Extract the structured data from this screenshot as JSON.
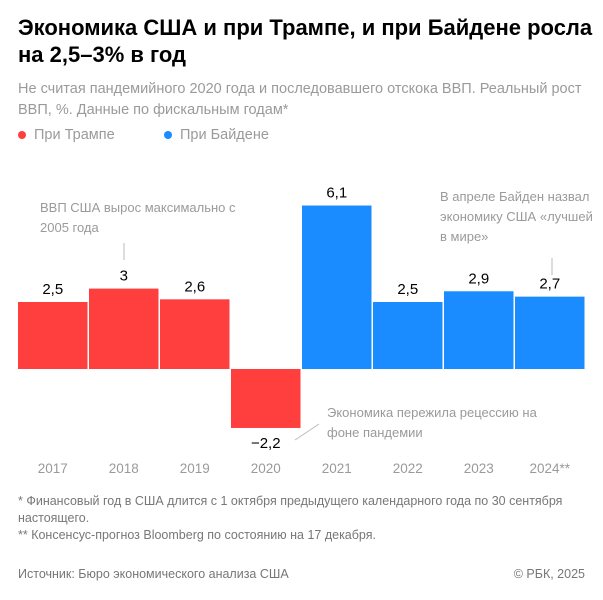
{
  "title": "Экономика США и при Трампе, и при Байдене росла на 2,5–3% в год",
  "subtitle": "Не считая пандемийного 2020 года и последовавшего отскока ВВП. Реальный рост ВВП, %. Данные по фискальным годам*",
  "legend": [
    {
      "label": "При Трампе",
      "color": "#ff3e3e"
    },
    {
      "label": "При Байдене",
      "color": "#1a8cff"
    }
  ],
  "chart_data": {
    "type": "bar",
    "categories": [
      "2017",
      "2018",
      "2019",
      "2020",
      "2021",
      "2022",
      "2023",
      "2024**"
    ],
    "values": [
      2.5,
      3,
      2.6,
      -2.2,
      6.1,
      2.5,
      2.9,
      2.7
    ],
    "value_labels": [
      "2,5",
      "3",
      "2,6",
      "−2,2",
      "6,1",
      "2,5",
      "2,9",
      "2,7"
    ],
    "series_by_category": [
      "При Трампе",
      "При Трампе",
      "При Трампе",
      "При Трампе",
      "При Байдене",
      "При Байдене",
      "При Байдене",
      "При Байдене"
    ],
    "grid": false,
    "annotations": [
      "ВВП США вырос максимально с 2005 года",
      "Экономика пережила рецессию на фоне пандемии",
      "В апреле Байден назвал экономику США «лучшей в мире»"
    ]
  },
  "footnotes": [
    "* Финансовый год в США длится с 1 октября предыдущего календарного года по 30 сентября настоящего.",
    "** Консенсус-прогноз Bloomberg по состоянию на 17 декабря."
  ],
  "source": "Источник: Бюро экономического анализа США",
  "copyright": "© РБК, 2025"
}
